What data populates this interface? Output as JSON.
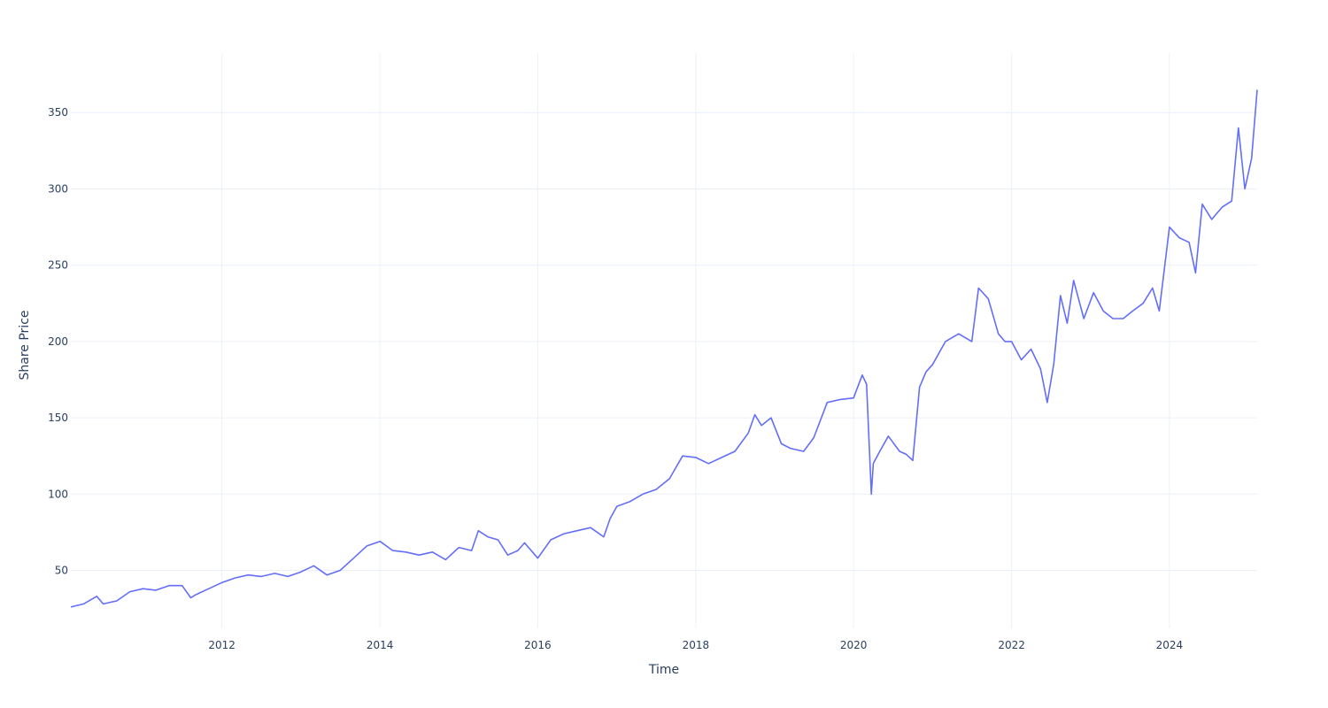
{
  "chart_data": {
    "type": "line",
    "title": "",
    "xlabel": "Time",
    "ylabel": "Share Price",
    "x_range": [
      "2010-02-01",
      "2025-02-10"
    ],
    "ylim": [
      12,
      389
    ],
    "x_ticks": [
      "2012",
      "2014",
      "2016",
      "2018",
      "2020",
      "2022",
      "2024"
    ],
    "y_ticks": [
      50,
      100,
      150,
      200,
      250,
      300,
      350
    ],
    "grid": true,
    "line_color": "#636efa",
    "background": "#ffffff",
    "series": [
      {
        "x": [
          "2010-02-01",
          "2010-04-01",
          "2010-06-01",
          "2010-07-01",
          "2010-09-01",
          "2010-11-01",
          "2011-01-01",
          "2011-03-01",
          "2011-05-01",
          "2011-07-01",
          "2011-08-10",
          "2011-09-01",
          "2011-11-01",
          "2012-01-01",
          "2012-03-01",
          "2012-05-01",
          "2012-07-01",
          "2012-09-01",
          "2012-11-01",
          "2013-01-01",
          "2013-03-01",
          "2013-05-01",
          "2013-07-01",
          "2013-09-01",
          "2013-11-01",
          "2014-01-01",
          "2014-03-01",
          "2014-05-01",
          "2014-07-01",
          "2014-09-01",
          "2014-11-01",
          "2015-01-01",
          "2015-03-01",
          "2015-04-01",
          "2015-05-15",
          "2015-07-01",
          "2015-08-15",
          "2015-10-01",
          "2015-11-01",
          "2016-01-01",
          "2016-03-01",
          "2016-05-01",
          "2016-07-01",
          "2016-09-01",
          "2016-11-01",
          "2016-12-01",
          "2017-01-01",
          "2017-03-01",
          "2017-05-01",
          "2017-07-01",
          "2017-09-01",
          "2017-11-01",
          "2018-01-01",
          "2018-03-01",
          "2018-05-01",
          "2018-07-01",
          "2018-09-01",
          "2018-10-01",
          "2018-11-01",
          "2018-12-15",
          "2019-02-01",
          "2019-03-15",
          "2019-05-15",
          "2019-07-01",
          "2019-09-01",
          "2019-11-01",
          "2020-01-01",
          "2020-02-10",
          "2020-03-01",
          "2020-03-23",
          "2020-04-01",
          "2020-05-01",
          "2020-06-10",
          "2020-08-01",
          "2020-09-01",
          "2020-10-01",
          "2020-11-01",
          "2020-12-01",
          "2021-01-01",
          "2021-03-01",
          "2021-05-01",
          "2021-07-01",
          "2021-08-01",
          "2021-09-15",
          "2021-11-01",
          "2021-12-01",
          "2022-01-01",
          "2022-02-15",
          "2022-04-01",
          "2022-05-15",
          "2022-06-15",
          "2022-07-15",
          "2022-08-15",
          "2022-09-15",
          "2022-10-15",
          "2022-12-01",
          "2023-01-15",
          "2023-03-01",
          "2023-04-15",
          "2023-06-01",
          "2023-07-15",
          "2023-09-01",
          "2023-10-15",
          "2023-11-15",
          "2024-01-01",
          "2024-02-15",
          "2024-04-01",
          "2024-05-01",
          "2024-06-01",
          "2024-07-15",
          "2024-09-01",
          "2024-10-15",
          "2024-11-15",
          "2024-12-15",
          "2025-01-15",
          "2025-02-10"
        ],
        "y": [
          26,
          28,
          33,
          28,
          30,
          36,
          38,
          37,
          40,
          40,
          32,
          34,
          38,
          42,
          45,
          47,
          46,
          48,
          46,
          49,
          53,
          47,
          50,
          58,
          66,
          69,
          63,
          62,
          60,
          62,
          57,
          65,
          63,
          76,
          72,
          70,
          60,
          63,
          68,
          58,
          70,
          74,
          76,
          78,
          72,
          84,
          92,
          95,
          100,
          103,
          110,
          125,
          124,
          120,
          124,
          128,
          140,
          152,
          145,
          150,
          133,
          130,
          128,
          137,
          160,
          162,
          163,
          178,
          172,
          100,
          120,
          128,
          138,
          128,
          126,
          122,
          170,
          180,
          185,
          200,
          205,
          200,
          235,
          228,
          205,
          200,
          200,
          188,
          195,
          182,
          160,
          185,
          230,
          212,
          240,
          215,
          232,
          220,
          215,
          215,
          220,
          225,
          235,
          220,
          275,
          268,
          265,
          245,
          290,
          280,
          288,
          292,
          340,
          300,
          320,
          365
        ]
      }
    ]
  }
}
